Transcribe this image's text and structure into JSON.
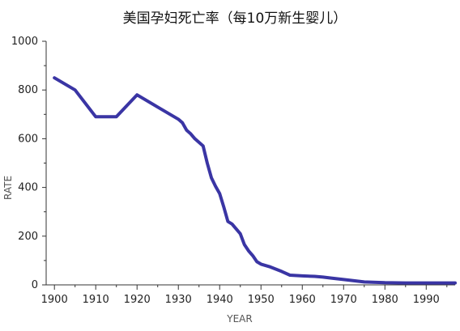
{
  "chart_data": {
    "type": "line",
    "title": "美国孕妇死亡率（每10万新生婴儿）",
    "xlabel": "YEAR",
    "ylabel": "RATE",
    "xlim": [
      1898,
      1997
    ],
    "ylim": [
      0,
      1000
    ],
    "x_ticks": [
      "1900",
      "1910",
      "1920",
      "1930",
      "1940",
      "1950",
      "1960",
      "1970",
      "1980",
      "1990"
    ],
    "y_ticks": [
      "0",
      "200",
      "400",
      "600",
      "800",
      "1000"
    ],
    "grid": false,
    "line_color": "#3a35a4",
    "series": [
      {
        "x": [
          1900,
          1905,
          1910,
          1915,
          1920,
          1925,
          1930,
          1931,
          1932,
          1933,
          1934,
          1935,
          1936,
          1937,
          1938,
          1939,
          1940,
          1941,
          1942,
          1943,
          1944,
          1945,
          1946,
          1947,
          1948,
          1949,
          1950,
          1952,
          1955,
          1957,
          1960,
          1963,
          1965,
          1967,
          1970,
          1975,
          1980,
          1985,
          1990,
          1997
        ],
        "y": [
          850,
          800,
          690,
          690,
          780,
          730,
          680,
          665,
          635,
          620,
          600,
          585,
          570,
          500,
          440,
          405,
          375,
          320,
          260,
          250,
          230,
          210,
          165,
          140,
          120,
          95,
          85,
          75,
          55,
          40,
          37,
          35,
          32,
          28,
          22,
          12,
          9,
          8,
          8,
          8
        ]
      }
    ]
  }
}
